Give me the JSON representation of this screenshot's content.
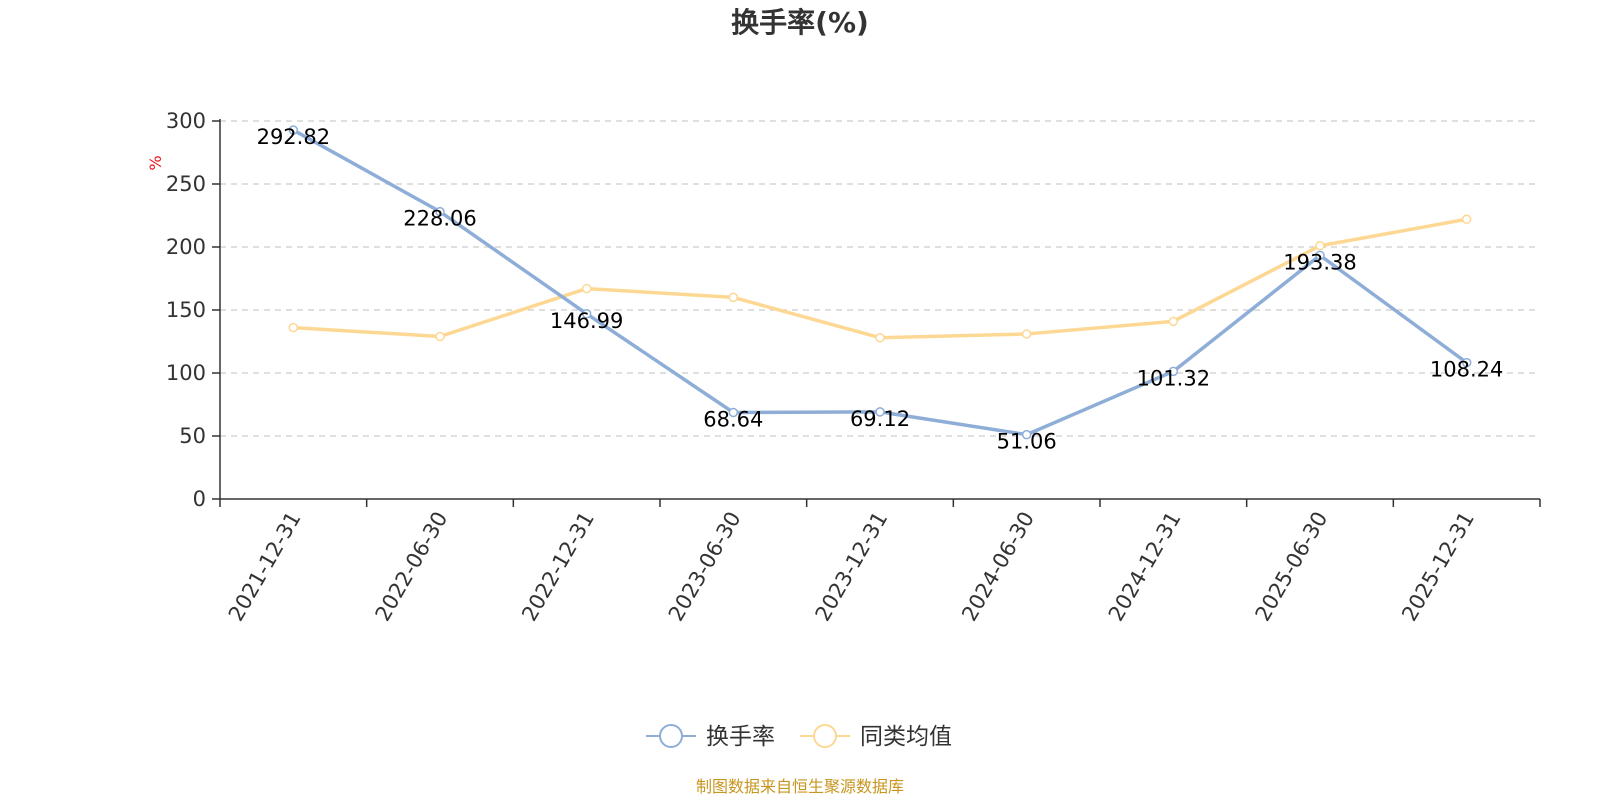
{
  "chart_data": {
    "type": "line",
    "title": "换手率(%)",
    "ylabel": "%",
    "ylim": [
      0,
      300
    ],
    "yticks": [
      0,
      50,
      100,
      150,
      200,
      250,
      300
    ],
    "grid": true,
    "legend_position": "bottom-center",
    "categories": [
      "2021-12-31",
      "2022-06-30",
      "2022-12-31",
      "2023-06-30",
      "2023-12-31",
      "2024-06-30",
      "2024-12-31",
      "2025-06-30",
      "2025-12-31"
    ],
    "series": [
      {
        "name": "换手率",
        "color": "#8eaed8",
        "values": [
          292.82,
          228.06,
          146.99,
          68.64,
          69.12,
          51.06,
          101.32,
          193.38,
          108.24
        ],
        "data_labels": [
          "292.82",
          "228.06",
          "146.99",
          "68.64",
          "69.12",
          "51.06",
          "101.32",
          "193.38",
          "108.24"
        ]
      },
      {
        "name": "同类均值",
        "color": "#fdd894",
        "values": [
          136,
          129,
          167,
          160,
          128,
          131,
          141,
          201,
          222
        ]
      }
    ]
  },
  "source_text": "制图数据来自恒生聚源数据库"
}
